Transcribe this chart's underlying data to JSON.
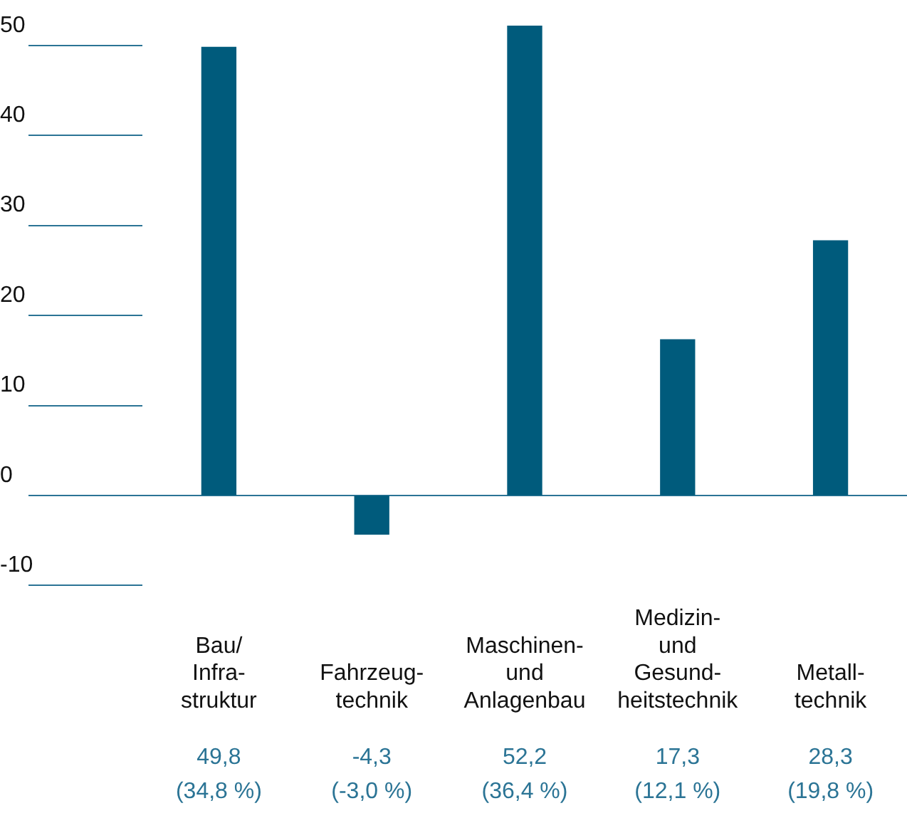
{
  "chart_data": {
    "type": "bar",
    "categories": [
      "Bau/\nInfra-\nstruktur",
      "Fahrzeug-\ntechnik",
      "Maschinen-\nund\nAnlagenbau",
      "Medizin-\nund\nGesund-\nheitstechnik",
      "Metall-\ntechnik"
    ],
    "values": [
      49.8,
      -4.3,
      52.2,
      17.3,
      28.3
    ],
    "value_labels": [
      "49,8\n(34,8 %)",
      "-4,3\n(-3,0 %)",
      "52,2\n(36,4 %)",
      "17,3\n(12,1 %)",
      "28,3\n(19,8 %)"
    ],
    "color": "#005b7c",
    "ylim": [
      -10,
      52.2
    ],
    "ref_lines": [
      {
        "axis": "y",
        "value": 0,
        "color": "#2b7495"
      }
    ],
    "yticks": [
      -10,
      0,
      10,
      20,
      30,
      40,
      50
    ],
    "grid": false,
    "legend": false
  }
}
